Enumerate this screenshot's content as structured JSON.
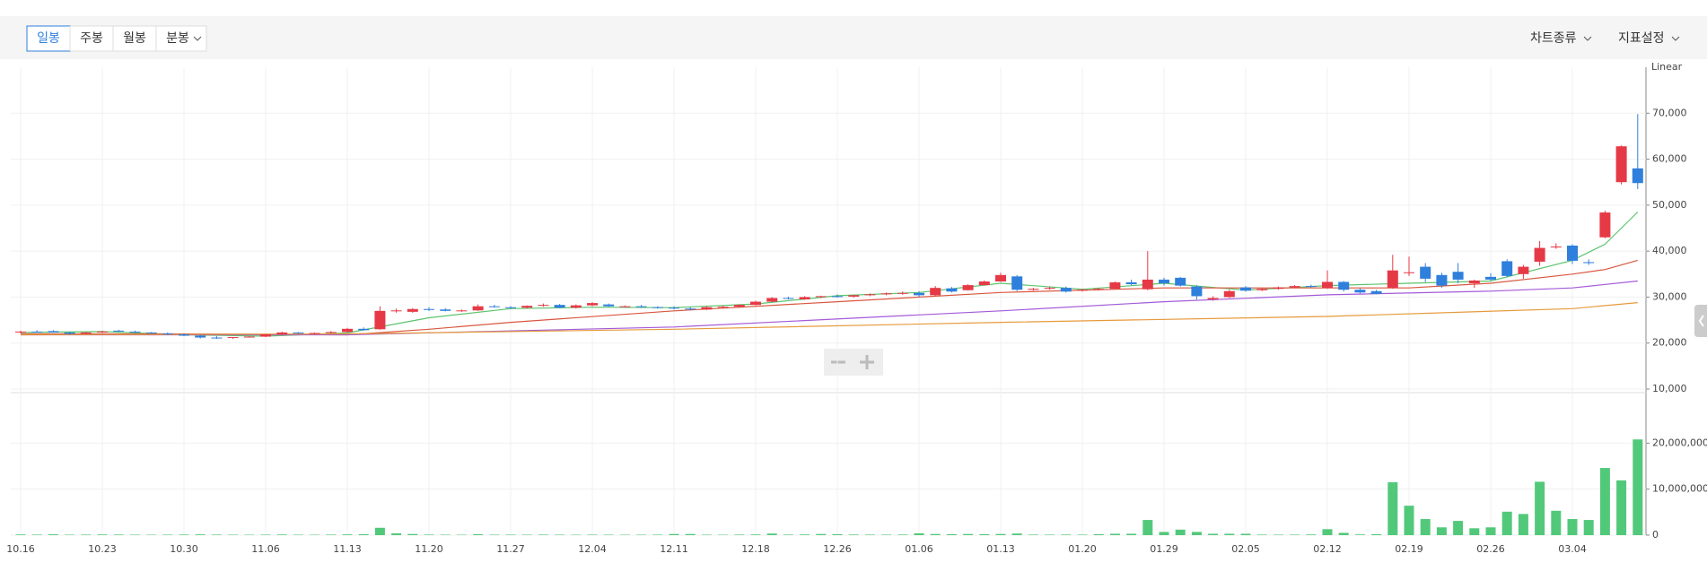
{
  "toolbar": {
    "intervals": [
      "일봉",
      "주봉",
      "월봉",
      "분봉"
    ],
    "selected": 0,
    "menus": [
      "차트종류",
      "지표설정"
    ]
  },
  "chart_data": [
    {
      "type": "candlestick",
      "scale_label": "Linear",
      "categories": [
        "10.16",
        null,
        null,
        null,
        null,
        "10.23",
        null,
        null,
        null,
        null,
        "10.30",
        null,
        null,
        null,
        null,
        "11.06",
        null,
        null,
        null,
        null,
        "11.13",
        null,
        null,
        null,
        null,
        "11.20",
        null,
        null,
        null,
        null,
        "11.27",
        null,
        null,
        null,
        null,
        "12.04",
        null,
        null,
        null,
        null,
        "12.11",
        null,
        null,
        null,
        null,
        "12.18",
        null,
        null,
        null,
        null,
        "12.26",
        null,
        null,
        null,
        null,
        "01.06",
        null,
        null,
        null,
        null,
        "01.13",
        null,
        null,
        null,
        null,
        "01.20",
        null,
        null,
        null,
        null,
        "01.29",
        null,
        null,
        null,
        null,
        "02.05",
        null,
        null,
        null,
        null,
        "02.12",
        null,
        null,
        null,
        null,
        "02.19",
        null,
        null,
        null,
        null,
        "02.26",
        null,
        null,
        null,
        null,
        "03.04",
        null,
        null,
        null,
        null
      ],
      "open": [
        22300,
        22500,
        22600,
        22300,
        22000,
        22300,
        22700,
        22500,
        22300,
        22100,
        21900,
        21600,
        21200,
        21100,
        21300,
        21400,
        21900,
        22300,
        22100,
        22200,
        22400,
        23100,
        23000,
        27000,
        26800,
        27400,
        27300,
        27000,
        27100,
        28000,
        27800,
        27700,
        28100,
        28300,
        27700,
        28200,
        28400,
        28000,
        28000,
        27800,
        27700,
        27500,
        27300,
        27800,
        27900,
        28300,
        29000,
        29800,
        29500,
        30000,
        30200,
        30100,
        30400,
        30600,
        30800,
        30900,
        30400,
        31900,
        31500,
        32600,
        33400,
        34500,
        31600,
        31800,
        32000,
        31400,
        31600,
        31800,
        33200,
        31700,
        33800,
        34200,
        32300,
        29500,
        30000,
        32100,
        31500,
        31800,
        32100,
        32400,
        32000,
        33300,
        31600,
        31300,
        32000,
        35200,
        36600,
        34800,
        35500,
        33000,
        34400,
        37800,
        35000,
        37700,
        40800,
        41200,
        37600,
        43000,
        55000,
        58000
      ],
      "high": [
        22700,
        22800,
        22800,
        22400,
        22400,
        22700,
        22900,
        22700,
        22400,
        22300,
        22000,
        21800,
        21500,
        21300,
        21500,
        22000,
        22500,
        22400,
        22300,
        22600,
        23300,
        23400,
        28000,
        27500,
        27600,
        27800,
        27600,
        27300,
        28400,
        28300,
        28000,
        28200,
        28600,
        28500,
        28400,
        28900,
        28600,
        28200,
        28300,
        28000,
        28000,
        27800,
        28000,
        28100,
        28400,
        29200,
        30000,
        30100,
        30200,
        30300,
        30600,
        30500,
        30800,
        31000,
        31200,
        31300,
        32400,
        32200,
        32800,
        33600,
        35300,
        34800,
        32000,
        32300,
        32300,
        31800,
        32000,
        33400,
        33800,
        40000,
        34200,
        34400,
        32600,
        30200,
        31600,
        32400,
        32000,
        32300,
        32600,
        32700,
        35800,
        33500,
        31900,
        31600,
        39200,
        38800,
        37400,
        35300,
        37400,
        33800,
        35200,
        38200,
        37000,
        42200,
        41700,
        41500,
        38200,
        48800,
        63000,
        69800
      ],
      "low": [
        22100,
        22300,
        22300,
        21800,
        21900,
        22200,
        22400,
        22200,
        22000,
        21800,
        21500,
        21000,
        20900,
        20900,
        21200,
        21300,
        21800,
        22000,
        21900,
        22100,
        22300,
        22700,
        22900,
        26600,
        26600,
        27000,
        26900,
        26800,
        27000,
        27700,
        27500,
        27500,
        27900,
        27600,
        27500,
        28000,
        27900,
        27800,
        27700,
        27500,
        27300,
        27100,
        27200,
        27600,
        27800,
        28200,
        28900,
        29500,
        29400,
        29800,
        29900,
        29900,
        30200,
        30400,
        30500,
        30000,
        30200,
        31000,
        31400,
        32500,
        33300,
        31300,
        31400,
        31600,
        31000,
        31200,
        31400,
        31700,
        32600,
        31500,
        32500,
        32300,
        29500,
        29200,
        29800,
        31200,
        31300,
        31600,
        31900,
        32100,
        31800,
        31200,
        30800,
        30600,
        31800,
        34600,
        33300,
        32000,
        33000,
        32000,
        33500,
        34300,
        34000,
        36800,
        40500,
        37200,
        37000,
        42800,
        54500,
        53500
      ],
      "close": [
        22500,
        22400,
        22300,
        22000,
        22300,
        22500,
        22500,
        22300,
        22100,
        21900,
        21600,
        21200,
        21100,
        21300,
        21400,
        21900,
        22300,
        22100,
        22200,
        22400,
        23100,
        22800,
        27000,
        27100,
        27400,
        27200,
        27000,
        27100,
        28000,
        27900,
        27700,
        28100,
        28300,
        27700,
        28200,
        28700,
        28000,
        28000,
        27800,
        27700,
        27500,
        27300,
        27800,
        27900,
        28300,
        29000,
        29800,
        29700,
        30000,
        30200,
        30100,
        30400,
        30600,
        30800,
        30900,
        30400,
        32000,
        31200,
        32600,
        33400,
        34800,
        31600,
        31800,
        32000,
        31200,
        31600,
        31800,
        33200,
        32800,
        33800,
        33000,
        32500,
        30200,
        29800,
        31300,
        31400,
        31800,
        32100,
        32400,
        32300,
        33300,
        31600,
        31000,
        30700,
        35800,
        35400,
        34000,
        32500,
        33800,
        33600,
        33800,
        34600,
        36600,
        40700,
        41000,
        37900,
        37400,
        48400,
        62800,
        54800
      ],
      "up_color": "#e63946",
      "down_color": "#2f7fdc",
      "moving_averages": [
        {
          "color": "#5cc46e",
          "x": [
            0,
            5,
            10,
            15,
            20,
            25,
            30,
            35,
            40,
            45,
            50,
            55,
            60,
            65,
            70,
            75,
            80,
            85,
            90,
            95,
            97,
            98,
            99
          ],
          "values": [
            22300,
            22500,
            21800,
            21500,
            22200,
            25500,
            27500,
            27800,
            27700,
            28500,
            30300,
            31000,
            33000,
            31700,
            33000,
            31500,
            32500,
            33000,
            33500,
            38000,
            41500,
            45000,
            48500
          ]
        },
        {
          "color": "#d9573f",
          "x": [
            0,
            10,
            20,
            25,
            30,
            40,
            50,
            60,
            70,
            80,
            85,
            90,
            95,
            97,
            99
          ],
          "values": [
            22000,
            22000,
            21800,
            23000,
            24500,
            27000,
            29000,
            31000,
            32000,
            32000,
            32000,
            33000,
            35000,
            36000,
            38000
          ]
        },
        {
          "color": "#a35ad8",
          "x": [
            0,
            20,
            40,
            60,
            70,
            80,
            90,
            95,
            99
          ],
          "values": [
            21800,
            21800,
            23500,
            27000,
            29000,
            30500,
            31300,
            32000,
            33500
          ]
        },
        {
          "color": "#e69a3c",
          "x": [
            0,
            20,
            40,
            60,
            80,
            95,
            99
          ],
          "values": [
            21800,
            22000,
            23000,
            24500,
            25800,
            27500,
            28800
          ]
        }
      ],
      "ylim": [
        10000,
        80000
      ],
      "yticks": [
        {
          "value": 10000,
          "label": "10,000"
        },
        {
          "value": 20000,
          "label": "20,000"
        },
        {
          "value": 30000,
          "label": "30,000"
        },
        {
          "value": 40000,
          "label": "40,000"
        },
        {
          "value": 50000,
          "label": "50,000"
        },
        {
          "value": 60000,
          "label": "60,000"
        },
        {
          "value": 70000,
          "label": "70,000"
        }
      ],
      "grid": true
    },
    {
      "type": "bar",
      "color": "#52c97a",
      "values": [
        150000,
        120000,
        180000,
        100000,
        120000,
        150000,
        130000,
        100000,
        90000,
        110000,
        130000,
        160000,
        120000,
        100000,
        90000,
        110000,
        140000,
        100000,
        90000,
        120000,
        160000,
        200000,
        1600000,
        400000,
        250000,
        120000,
        100000,
        90000,
        200000,
        100000,
        110000,
        100000,
        120000,
        100000,
        90000,
        110000,
        100000,
        90000,
        100000,
        110000,
        250000,
        250000,
        100000,
        90000,
        120000,
        150000,
        350000,
        120000,
        150000,
        250000,
        200000,
        130000,
        120000,
        110000,
        130000,
        400000,
        250000,
        200000,
        250000,
        200000,
        250000,
        350000,
        120000,
        110000,
        130000,
        110000,
        200000,
        300000,
        300000,
        3300000,
        700000,
        1200000,
        700000,
        300000,
        300000,
        300000,
        120000,
        100000,
        110000,
        150000,
        1300000,
        500000,
        150000,
        200000,
        11500000,
        6400000,
        3500000,
        1700000,
        3100000,
        1500000,
        1700000,
        5100000,
        4600000,
        11600000,
        5300000,
        3500000,
        3300000,
        14600000,
        11900000,
        20800000
      ],
      "ylim": [
        0,
        30000000
      ],
      "yticks": [
        0,
        {
          "value": 10000000,
          "label": "10,000,000"
        },
        {
          "value": 20000000,
          "label": "20,000,000"
        }
      ],
      "grid": true
    }
  ]
}
